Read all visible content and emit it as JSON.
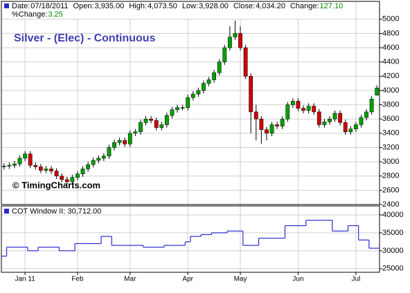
{
  "header": [
    {
      "label": "Date:",
      "value": "07/18/2011"
    },
    {
      "label": "Open:",
      "value": "3,935.00"
    },
    {
      "label": "High:",
      "value": "4,073.50"
    },
    {
      "label": "Low:",
      "value": "3,928.00"
    },
    {
      "label": "Close:",
      "value": "4,034.20"
    },
    {
      "label": "Change:",
      "value": "127.10"
    }
  ],
  "header_line2": {
    "label": "%Change:",
    "value": "3.25"
  },
  "chart_data": [
    {
      "type": "candlestick",
      "title": "Silver - (Elec) - Continuous",
      "annotation": "© TimingCharts.com",
      "categories": [
        null,
        null,
        null,
        null,
        "Jan 11",
        null,
        null,
        null,
        null,
        null,
        null,
        null,
        null,
        null,
        "Feb",
        null,
        null,
        null,
        null,
        null,
        null,
        null,
        null,
        null,
        "Mar",
        null,
        null,
        null,
        null,
        null,
        null,
        null,
        null,
        null,
        null,
        "Apr",
        null,
        null,
        null,
        null,
        null,
        null,
        null,
        null,
        null,
        "May",
        null,
        null,
        null,
        null,
        null,
        null,
        null,
        null,
        null,
        null,
        "Jun",
        null,
        null,
        null,
        null,
        null,
        null,
        null,
        null,
        null,
        null,
        "Jul",
        null,
        null,
        null,
        null
      ],
      "open": [
        2930,
        2940,
        2950,
        2970,
        3050,
        3110,
        2950,
        2930,
        2880,
        2900,
        2870,
        2800,
        2750,
        2720,
        2780,
        2830,
        2900,
        2960,
        3020,
        3050,
        3080,
        3200,
        3270,
        3300,
        3250,
        3400,
        3420,
        3550,
        3600,
        3580,
        3480,
        3520,
        3650,
        3730,
        3760,
        3760,
        3900,
        3950,
        4000,
        4100,
        4150,
        4250,
        4400,
        4600,
        4750,
        4800,
        4600,
        4200,
        3700,
        3600,
        3450,
        3400,
        3520,
        3500,
        3600,
        3800,
        3850,
        3750,
        3720,
        3780,
        3700,
        3520,
        3560,
        3600,
        3680,
        3550,
        3420,
        3460,
        3520,
        3620,
        3700,
        3935
      ],
      "high": [
        2980,
        2990,
        3010,
        3090,
        3150,
        3150,
        2990,
        2970,
        2940,
        2940,
        2910,
        2840,
        2790,
        2820,
        2870,
        2940,
        3000,
        3060,
        3090,
        3120,
        3240,
        3310,
        3340,
        3340,
        3440,
        3460,
        3590,
        3640,
        3640,
        3620,
        3560,
        3690,
        3770,
        3800,
        3800,
        3940,
        3990,
        4040,
        4140,
        4190,
        4290,
        4440,
        4640,
        4900,
        4980,
        4900,
        4640,
        4240,
        3800,
        3640,
        3490,
        3560,
        3560,
        3640,
        3840,
        3890,
        3890,
        3790,
        3820,
        3820,
        3740,
        3600,
        3640,
        3720,
        3720,
        3590,
        3500,
        3560,
        3660,
        3740,
        3920,
        4073.5
      ],
      "low": [
        2890,
        2900,
        2910,
        2930,
        3010,
        2910,
        2890,
        2840,
        2840,
        2830,
        2760,
        2710,
        2680,
        2680,
        2740,
        2790,
        2860,
        2920,
        2980,
        3010,
        3040,
        3160,
        3230,
        3210,
        3210,
        3360,
        3380,
        3510,
        3540,
        3440,
        3440,
        3480,
        3610,
        3690,
        3720,
        3720,
        3860,
        3910,
        3960,
        4060,
        4110,
        4210,
        4360,
        4560,
        4710,
        4560,
        4160,
        3400,
        3300,
        3250,
        3300,
        3360,
        3460,
        3460,
        3560,
        3760,
        3710,
        3680,
        3680,
        3660,
        3480,
        3480,
        3520,
        3560,
        3510,
        3380,
        3380,
        3420,
        3480,
        3580,
        3660,
        3928
      ],
      "close": [
        2940,
        2950,
        2970,
        3050,
        3110,
        2950,
        2930,
        2880,
        2900,
        2870,
        2800,
        2750,
        2720,
        2780,
        2830,
        2900,
        2960,
        3020,
        3050,
        3080,
        3200,
        3270,
        3300,
        3250,
        3400,
        3420,
        3550,
        3600,
        3580,
        3480,
        3520,
        3650,
        3730,
        3760,
        3760,
        3900,
        3950,
        4000,
        4100,
        4150,
        4250,
        4400,
        4600,
        4750,
        4800,
        4600,
        4200,
        3700,
        3600,
        3450,
        3400,
        3520,
        3500,
        3600,
        3800,
        3850,
        3750,
        3720,
        3780,
        3700,
        3520,
        3560,
        3600,
        3680,
        3550,
        3420,
        3460,
        3520,
        3620,
        3700,
        3880,
        4034.2
      ],
      "up_color": "#00a000",
      "down_color": "#d00000",
      "ylim": [
        2400,
        5250
      ],
      "yticks": [
        2400,
        2600,
        2800,
        3000,
        3200,
        3400,
        3600,
        3800,
        4000,
        4200,
        4400,
        4600,
        4800,
        5000
      ],
      "grid": true
    },
    {
      "type": "step",
      "name": "COT Window II: 30,712.00",
      "color": "#2a2acc",
      "values": [
        28500,
        31000,
        31000,
        31000,
        31000,
        30000,
        30000,
        31000,
        31000,
        31000,
        31000,
        30000,
        30000,
        30000,
        32000,
        32000,
        32000,
        32000,
        32000,
        34000,
        34000,
        31500,
        31500,
        31500,
        31500,
        31500,
        31500,
        31000,
        31000,
        31000,
        31000,
        31500,
        31500,
        31500,
        31500,
        32500,
        34000,
        34000,
        34500,
        34500,
        35000,
        35000,
        35000,
        35500,
        35500,
        35500,
        31500,
        31500,
        31500,
        33500,
        33500,
        33500,
        33500,
        33500,
        37000,
        37000,
        37000,
        37000,
        38500,
        38500,
        38500,
        38500,
        38500,
        35500,
        35500,
        35500,
        37000,
        37000,
        33000,
        33000,
        30712,
        30712
      ],
      "ylim": [
        24000,
        42500
      ],
      "yticks": [
        25000,
        30000,
        35000,
        40000
      ],
      "grid": true
    }
  ]
}
